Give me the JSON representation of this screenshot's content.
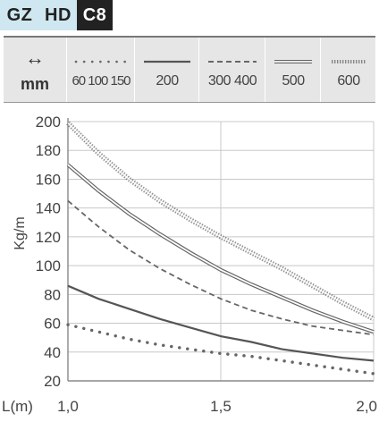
{
  "tags": [
    {
      "label": "GZ",
      "style": "light"
    },
    {
      "label": "HD",
      "style": "light"
    },
    {
      "label": "C8",
      "style": "dark"
    }
  ],
  "legend": {
    "unit_icon": "↔",
    "unit_label": "mm",
    "entries": [
      {
        "label": "60 100 150",
        "style": "dotted"
      },
      {
        "label": "200",
        "style": "solid"
      },
      {
        "label": "300  400",
        "style": "dashed"
      },
      {
        "label": "500",
        "style": "double"
      },
      {
        "label": "600",
        "style": "zigzag"
      }
    ]
  },
  "chart_data": {
    "type": "line",
    "ylabel": "Kg/m",
    "xlabel": "L(m)",
    "xlim": [
      1.0,
      2.0
    ],
    "ylim": [
      20,
      200
    ],
    "x_ticks": [
      {
        "value": 1.0,
        "label": "1,0"
      },
      {
        "value": 1.5,
        "label": "1,5"
      },
      {
        "value": 2.0,
        "label": "2,0"
      }
    ],
    "y_ticks": [
      20,
      40,
      60,
      80,
      100,
      120,
      140,
      160,
      180,
      200
    ],
    "grid": true,
    "colors": {
      "series": "#555555",
      "grid": "#c8c8c8",
      "axis": "#888888"
    },
    "series": [
      {
        "style": "zigzag",
        "x": [
          1.0,
          1.1,
          1.2,
          1.3,
          1.4,
          1.5,
          1.6,
          1.7,
          1.8,
          1.9,
          2.0
        ],
        "y": [
          199,
          178,
          160,
          145,
          132,
          120,
          109,
          98,
          86,
          74,
          63
        ]
      },
      {
        "style": "double",
        "x": [
          1.0,
          1.1,
          1.2,
          1.3,
          1.4,
          1.5,
          1.6,
          1.7,
          1.8,
          1.9,
          2.0
        ],
        "y": [
          170,
          152,
          136,
          122,
          109,
          97,
          87,
          78,
          69,
          61,
          54
        ]
      },
      {
        "style": "dashed",
        "x": [
          1.0,
          1.1,
          1.2,
          1.3,
          1.4,
          1.5,
          1.6,
          1.7,
          1.8,
          1.9,
          2.0
        ],
        "y": [
          145,
          127,
          111,
          98,
          87,
          77,
          69,
          63,
          58,
          55,
          52
        ]
      },
      {
        "style": "solid",
        "x": [
          1.0,
          1.1,
          1.2,
          1.3,
          1.4,
          1.5,
          1.6,
          1.7,
          1.8,
          1.9,
          2.0
        ],
        "y": [
          86,
          77,
          70,
          63,
          57,
          51,
          47,
          42,
          39,
          36,
          34
        ]
      },
      {
        "style": "dotted",
        "x": [
          1.0,
          1.1,
          1.2,
          1.3,
          1.4,
          1.5,
          1.6,
          1.7,
          1.8,
          1.9,
          2.0
        ],
        "y": [
          59,
          54,
          49,
          45,
          42,
          39,
          37,
          34,
          31,
          28,
          25
        ]
      }
    ]
  }
}
